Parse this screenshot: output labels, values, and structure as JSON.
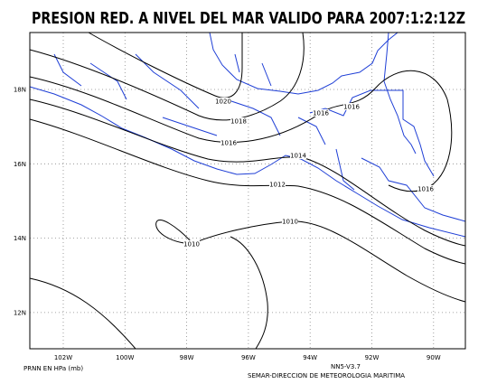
{
  "title": "PRESION RED. A NIVEL DEL MAR VALIDO PARA 2007:1:2:12Z",
  "longitude_labels": [
    "102W",
    "100W",
    "98W",
    "96W",
    "94W",
    "92W",
    "90W"
  ],
  "latitude_labels": [
    "18N",
    "16N",
    "14N",
    "12N"
  ],
  "contour_labels": [
    "1020",
    "1018",
    "1016",
    "1016",
    "1016",
    "1014",
    "1012",
    "1010",
    "1010",
    "1016"
  ],
  "footer": {
    "variable": "PRNN EN HPa (mb)",
    "version": "NN5-V3.7",
    "source": "SEMAR-DIRECCION DE METEOROLOGIA MARITIMA"
  }
}
